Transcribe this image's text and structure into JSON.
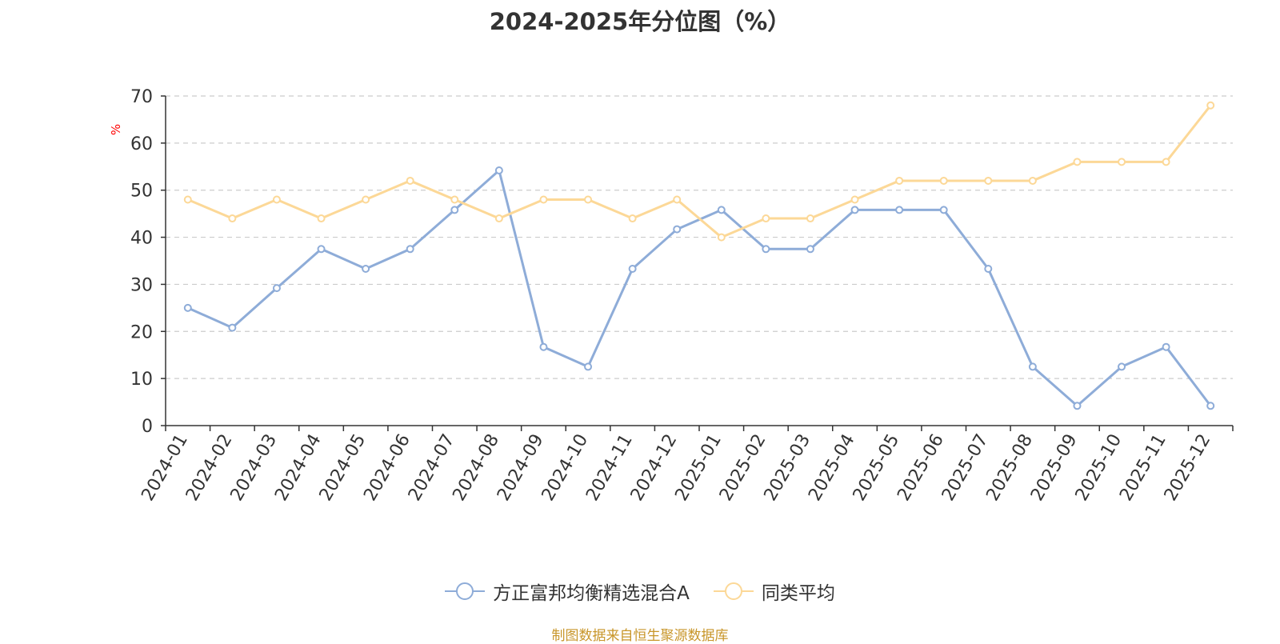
{
  "chart_data": {
    "type": "line",
    "title": "2024-2025年分位图（%）",
    "ylabel": "%",
    "xlabel": "",
    "ylim": [
      0,
      70
    ],
    "yticks": [
      0,
      10,
      20,
      30,
      40,
      50,
      60,
      70
    ],
    "grid": true,
    "legend_position": "bottom",
    "categories": [
      "2024-01",
      "2024-02",
      "2024-03",
      "2024-04",
      "2024-05",
      "2024-06",
      "2024-07",
      "2024-08",
      "2024-09",
      "2024-10",
      "2024-11",
      "2024-12",
      "2025-01",
      "2025-02",
      "2025-03",
      "2025-04",
      "2025-05",
      "2025-06",
      "2025-07",
      "2025-08",
      "2025-09",
      "2025-10",
      "2025-11",
      "2025-12"
    ],
    "series": [
      {
        "name": "方正富邦均衡精选混合A",
        "color": "#8eacd8",
        "values": [
          25,
          20.8,
          29.2,
          37.5,
          33.3,
          37.5,
          45.8,
          54.2,
          16.7,
          12.5,
          33.3,
          41.7,
          45.8,
          37.5,
          37.5,
          45.8,
          45.8,
          45.8,
          33.3,
          12.5,
          4.2,
          12.5,
          16.7,
          4.2
        ]
      },
      {
        "name": "同类平均",
        "color": "#fcd897",
        "values": [
          48,
          44,
          48,
          44,
          48,
          52,
          48,
          44,
          48,
          48,
          44,
          48,
          40,
          44,
          44,
          48,
          52,
          52,
          52,
          52,
          56,
          56,
          56,
          68
        ]
      }
    ]
  },
  "source_note": "制图数据来自恒生聚源数据库",
  "colors": {
    "axis": "#333333",
    "grid": "#cccccc",
    "ylabel": "#ff0000",
    "source": "#c8962a"
  }
}
